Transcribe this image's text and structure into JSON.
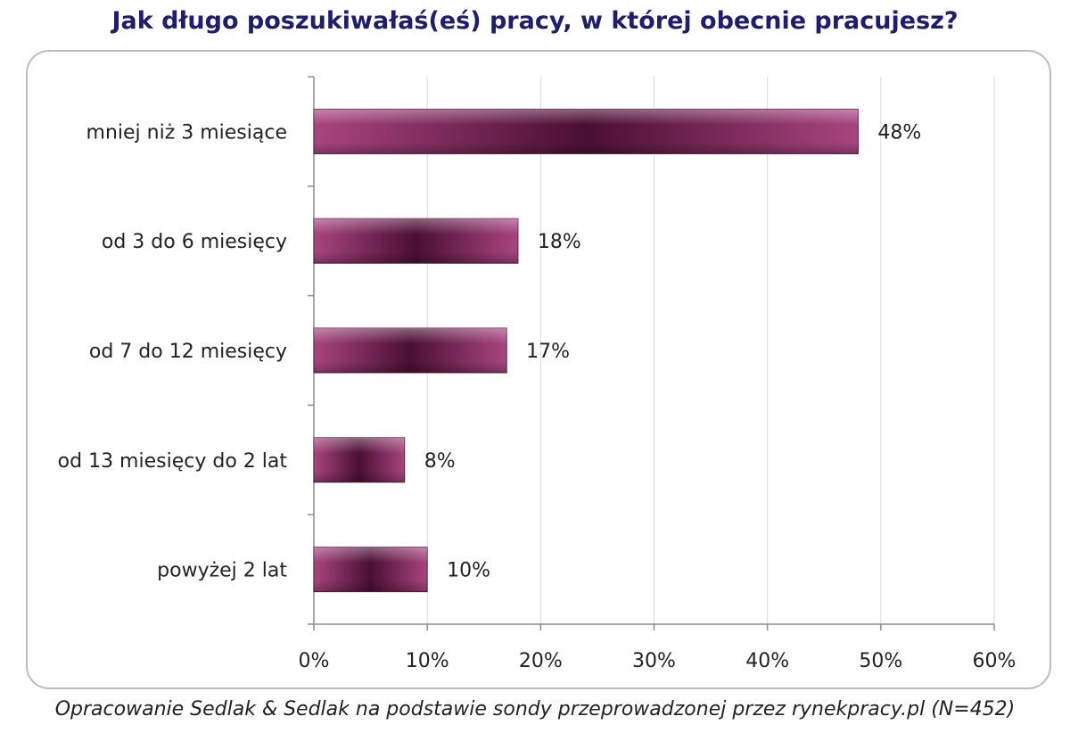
{
  "title": "Jak długo poszukiwałaś(eś) pracy, w której obecnie pracujesz?",
  "footnote": "Opracowanie Sedlak & Sedlak na podstawie sondy przeprowadzonej przez rynekpracy.pl (N=452)",
  "chart_data": {
    "type": "bar",
    "orientation": "horizontal",
    "categories": [
      "mniej niż 3 miesiące",
      "od 3 do 6 miesięcy",
      "od 7 do 12 miesięcy",
      "od 13 miesięcy do 2 lat",
      "powyżej 2 lat"
    ],
    "values": [
      48,
      18,
      17,
      8,
      10
    ],
    "value_labels": [
      "48%",
      "18%",
      "17%",
      "8%",
      "10%"
    ],
    "xlim": [
      0,
      60
    ],
    "x_ticks": [
      0,
      10,
      20,
      30,
      40,
      50,
      60
    ],
    "x_tick_labels": [
      "0%",
      "10%",
      "20%",
      "30%",
      "40%",
      "50%",
      "60%"
    ],
    "grid": "vertical",
    "legend": "none",
    "bar_color": "#a8457f",
    "bar_dark_color": "#4a0f33"
  }
}
